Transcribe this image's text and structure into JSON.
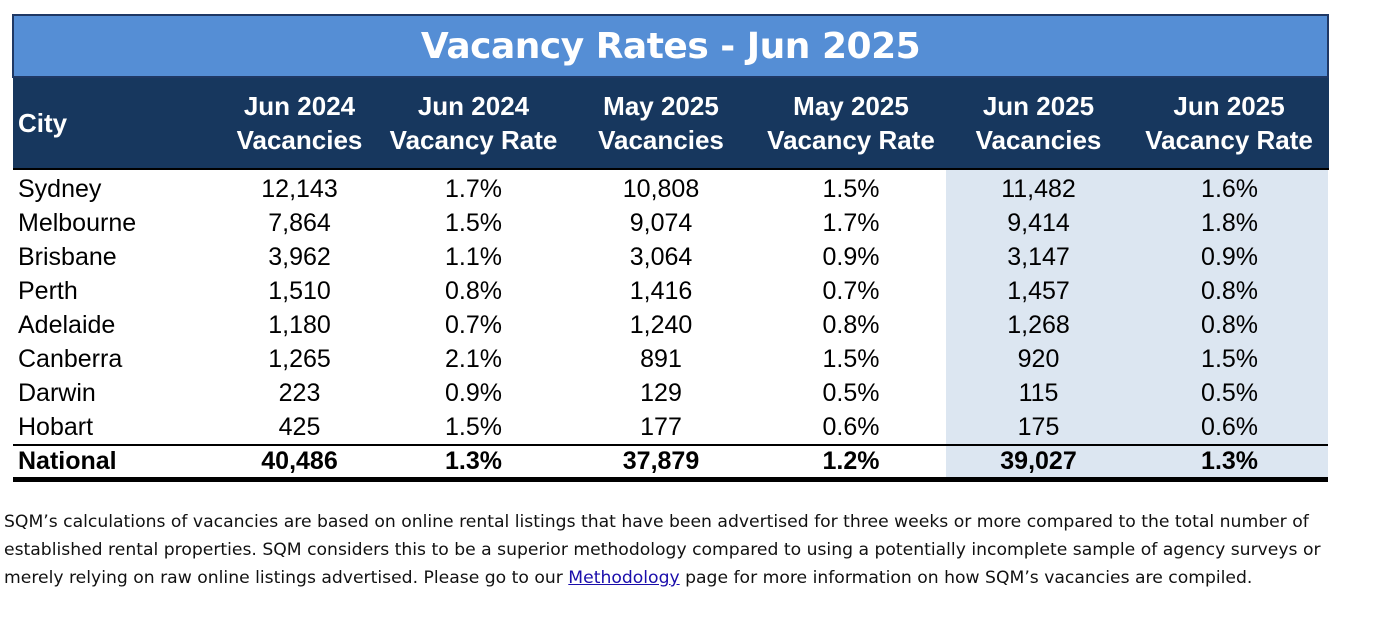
{
  "chart_data": {
    "type": "table",
    "title": "Vacancy Rates - Jun 2025",
    "columns": [
      "City",
      "Jun 2024 Vacancies",
      "Jun 2024 Vacancy Rate",
      "May 2025 Vacancies",
      "May 2025 Vacancy Rate",
      "Jun 2025 Vacancies",
      "Jun 2025 Vacancy Rate"
    ],
    "header_lines": [
      [
        "City"
      ],
      [
        "Jun 2024",
        "Vacancies"
      ],
      [
        "Jun 2024",
        "Vacancy Rate"
      ],
      [
        "May 2025",
        "Vacancies"
      ],
      [
        "May 2025",
        "Vacancy Rate"
      ],
      [
        "Jun 2025",
        "Vacancies"
      ],
      [
        "Jun 2025",
        "Vacancy Rate"
      ]
    ],
    "rows": [
      [
        "Sydney",
        "12,143",
        "1.7%",
        "10,808",
        "1.5%",
        "11,482",
        "1.6%"
      ],
      [
        "Melbourne",
        "7,864",
        "1.5%",
        "9,074",
        "1.7%",
        "9,414",
        "1.8%"
      ],
      [
        "Brisbane",
        "3,962",
        "1.1%",
        "3,064",
        "0.9%",
        "3,147",
        "0.9%"
      ],
      [
        "Perth",
        "1,510",
        "0.8%",
        "1,416",
        "0.7%",
        "1,457",
        "0.8%"
      ],
      [
        "Adelaide",
        "1,180",
        "0.7%",
        "1,240",
        "0.8%",
        "1,268",
        "0.8%"
      ],
      [
        "Canberra",
        "1,265",
        "2.1%",
        "891",
        "1.5%",
        "920",
        "1.5%"
      ],
      [
        "Darwin",
        "223",
        "0.9%",
        "129",
        "0.5%",
        "115",
        "0.5%"
      ],
      [
        "Hobart",
        "425",
        "1.5%",
        "177",
        "0.6%",
        "175",
        "0.6%"
      ]
    ],
    "total": [
      "National",
      "40,486",
      "1.3%",
      "37,879",
      "1.2%",
      "39,027",
      "1.3%"
    ],
    "highlighted_columns": [
      5,
      6
    ]
  },
  "colors": {
    "title_bg": "#558ed5",
    "header_bg": "#17375e",
    "highlight_bg": "#dce6f1"
  },
  "note": {
    "before_link": "SQM’s calculations of vacancies are based on online rental listings that have been advertised for three weeks or more compared to the total number of established rental properties. SQM considers this to be a superior methodology compared to using a potentially incomplete sample of agency surveys or merely relying on raw online listings advertised. Please go to our ",
    "link_text": "Methodology",
    "after_link": " page for more information on how SQM’s vacancies are compiled."
  }
}
